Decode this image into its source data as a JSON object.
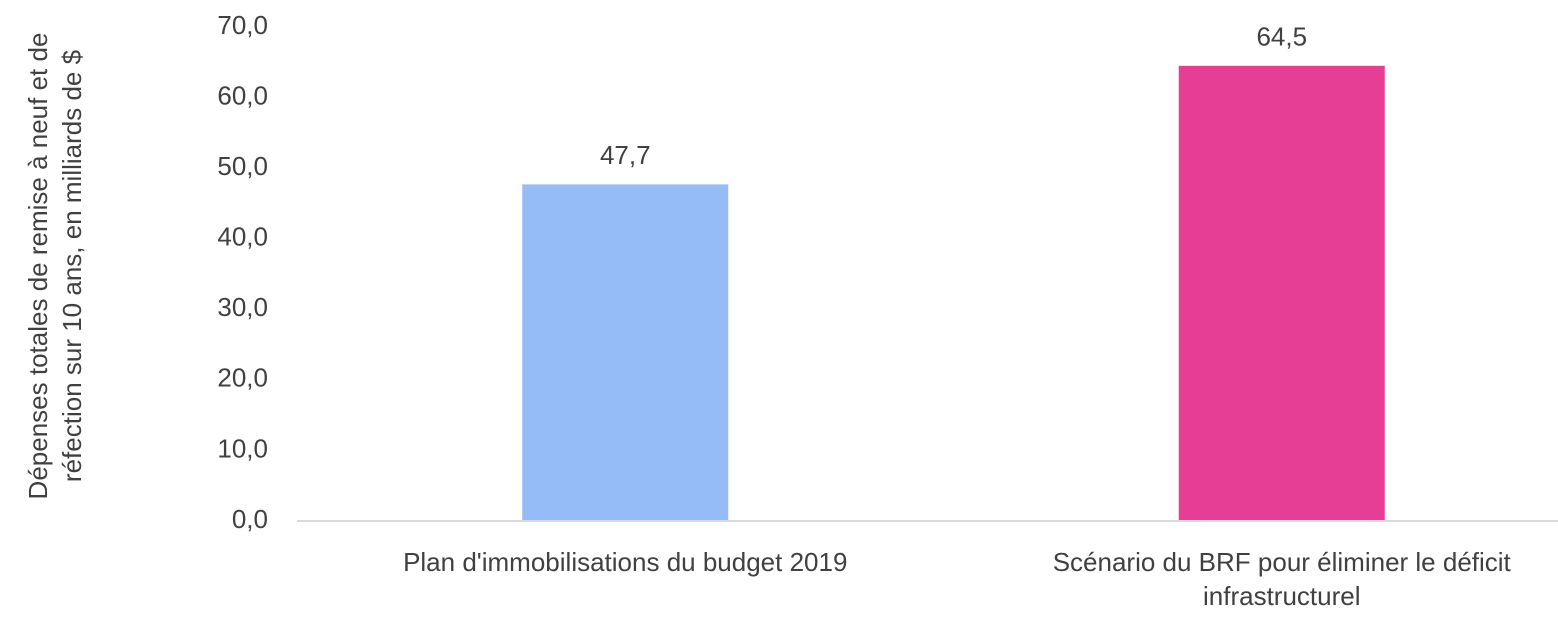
{
  "chart_data": {
    "type": "bar",
    "y_axis_label": "Dépenses totales de remise à neuf et de réfection sur 10 ans, en milliards de $",
    "categories": [
      "Plan d'immobilisations du budget 2019",
      "Scénario du BRF pour éliminer le déficit infrastructurel"
    ],
    "values": [
      47.7,
      64.5
    ],
    "value_labels": [
      "47,7",
      "64,5"
    ],
    "colors": [
      "#95bcf7",
      "#e63e94"
    ],
    "ylim": [
      0,
      70
    ],
    "yticks": [
      {
        "value": 0,
        "label": "0,0"
      },
      {
        "value": 10,
        "label": "10,0"
      },
      {
        "value": 20,
        "label": "20,0"
      },
      {
        "value": 30,
        "label": "30,0"
      },
      {
        "value": 40,
        "label": "40,0"
      },
      {
        "value": 50,
        "label": "50,0"
      },
      {
        "value": 60,
        "label": "60,0"
      },
      {
        "value": 70,
        "label": "70,0"
      }
    ],
    "grid": false
  }
}
